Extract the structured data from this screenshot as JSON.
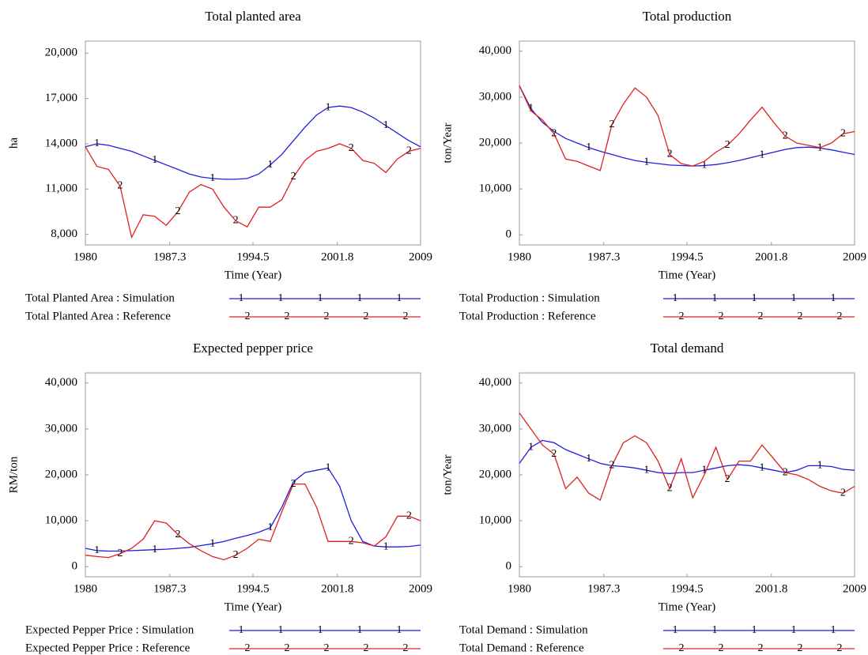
{
  "chart_data": [
    {
      "type": "line",
      "title": "Total planted area",
      "xlabel": "Time (Year)",
      "ylabel": "ha",
      "x": [
        1980,
        1981,
        1982,
        1983,
        1984,
        1985,
        1986,
        1987,
        1988,
        1989,
        1990,
        1991,
        1992,
        1993,
        1994,
        1995,
        1996,
        1997,
        1998,
        1999,
        2000,
        2001,
        2002,
        2003,
        2004,
        2005,
        2006,
        2007,
        2008,
        2009
      ],
      "xlim": [
        1980,
        2009
      ],
      "xticks": [
        1980,
        1987.3,
        1994.5,
        2001.8,
        2009
      ],
      "ylim": [
        7300,
        20800
      ],
      "yticks": [
        {
          "value": 8000,
          "label": "8,000"
        },
        {
          "value": 11000,
          "label": "11,000"
        },
        {
          "value": 14000,
          "label": "14,000"
        },
        {
          "value": 17000,
          "label": "17,000"
        },
        {
          "value": 20000,
          "label": "20,000"
        }
      ],
      "series": [
        {
          "name": "Total Planted Area : Simulation",
          "color": "#1f1fe0",
          "marker": "1",
          "values": [
            13800,
            14000,
            13900,
            13700,
            13500,
            13200,
            12900,
            12600,
            12300,
            12000,
            11800,
            11700,
            11650,
            11650,
            11700,
            12000,
            12600,
            13300,
            14200,
            15100,
            15900,
            16400,
            16500,
            16400,
            16100,
            15700,
            15200,
            14700,
            14200,
            13800
          ]
        },
        {
          "name": "Total Planted Area : Reference",
          "color": "#e02020",
          "marker": "2",
          "values": [
            13800,
            12500,
            12300,
            11200,
            7800,
            9300,
            9200,
            8600,
            9500,
            10800,
            11300,
            11000,
            9800,
            8900,
            8500,
            9800,
            9800,
            10300,
            11800,
            12900,
            13500,
            13700,
            14000,
            13700,
            12900,
            12700,
            12100,
            13000,
            13500,
            13700
          ]
        }
      ]
    },
    {
      "type": "line",
      "title": "Total production",
      "xlabel": "Time (Year)",
      "ylabel": "ton/Year",
      "x": [
        1980,
        1981,
        1982,
        1983,
        1984,
        1985,
        1986,
        1987,
        1988,
        1989,
        1990,
        1991,
        1992,
        1993,
        1994,
        1995,
        1996,
        1997,
        1998,
        1999,
        2000,
        2001,
        2002,
        2003,
        2004,
        2005,
        2006,
        2007,
        2008,
        2009
      ],
      "xlim": [
        1980,
        2009
      ],
      "xticks": [
        1980,
        1987.3,
        1994.5,
        2001.8,
        2009
      ],
      "ylim": [
        -2200,
        42200
      ],
      "yticks": [
        0,
        {
          "value": 10000,
          "label": "10,000"
        },
        {
          "value": 20000,
          "label": "20,000"
        },
        {
          "value": 30000,
          "label": "30,000"
        },
        {
          "value": 40000,
          "label": "40,000"
        }
      ],
      "series": [
        {
          "name": "Total Production : Simulation",
          "color": "#1f1fe0",
          "marker": "1",
          "values": [
            32500,
            27500,
            24500,
            22500,
            21000,
            20000,
            19000,
            18200,
            17500,
            16800,
            16200,
            15800,
            15500,
            15200,
            15100,
            15000,
            15100,
            15300,
            15700,
            16200,
            16800,
            17400,
            18000,
            18600,
            19000,
            19100,
            18900,
            18500,
            18000,
            17500
          ]
        },
        {
          "name": "Total Production : Reference",
          "color": "#e02020",
          "marker": "2",
          "values": [
            32500,
            27000,
            25000,
            22000,
            16500,
            16000,
            15000,
            14000,
            24000,
            28500,
            32000,
            30000,
            26000,
            17500,
            15500,
            15000,
            16000,
            18000,
            19500,
            22000,
            25000,
            27800,
            24500,
            21500,
            20000,
            19500,
            19000,
            20000,
            22000,
            22500
          ]
        }
      ]
    },
    {
      "type": "line",
      "title": "Expected pepper price",
      "xlabel": "Time (Year)",
      "ylabel": "RM/ton",
      "x": [
        1980,
        1981,
        1982,
        1983,
        1984,
        1985,
        1986,
        1987,
        1988,
        1989,
        1990,
        1991,
        1992,
        1993,
        1994,
        1995,
        1996,
        1997,
        1998,
        1999,
        2000,
        2001,
        2002,
        2003,
        2004,
        2005,
        2006,
        2007,
        2008,
        2009
      ],
      "xlim": [
        1980,
        2009
      ],
      "xticks": [
        1980,
        1987.3,
        1994.5,
        2001.8,
        2009
      ],
      "ylim": [
        -2200,
        42200
      ],
      "yticks": [
        0,
        {
          "value": 10000,
          "label": "10,000"
        },
        {
          "value": 20000,
          "label": "20,000"
        },
        {
          "value": 30000,
          "label": "30,000"
        },
        {
          "value": 40000,
          "label": "40,000"
        }
      ],
      "series": [
        {
          "name": "Expected Pepper Price : Simulation",
          "color": "#1f1fe0",
          "marker": "1",
          "values": [
            4000,
            3500,
            3400,
            3400,
            3500,
            3600,
            3700,
            3800,
            4000,
            4200,
            4600,
            5000,
            5500,
            6200,
            6800,
            7500,
            8500,
            13000,
            18500,
            20500,
            21000,
            21500,
            17500,
            10000,
            5500,
            4500,
            4300,
            4300,
            4400,
            4700
          ]
        },
        {
          "name": "Expected Pepper Price : Reference",
          "color": "#e02020",
          "marker": "2",
          "values": [
            2500,
            2200,
            2000,
            2800,
            4000,
            6000,
            10000,
            9500,
            7000,
            5000,
            3500,
            2200,
            1500,
            2500,
            4000,
            6000,
            5500,
            12000,
            18000,
            18000,
            13000,
            5500,
            5500,
            5500,
            5200,
            4500,
            6500,
            11000,
            11000,
            10000
          ]
        }
      ]
    },
    {
      "type": "line",
      "title": "Total demand",
      "xlabel": "Time (Year)",
      "ylabel": "ton/Year",
      "x": [
        1980,
        1981,
        1982,
        1983,
        1984,
        1985,
        1986,
        1987,
        1988,
        1989,
        1990,
        1991,
        1992,
        1993,
        1994,
        1995,
        1996,
        1997,
        1998,
        1999,
        2000,
        2001,
        2002,
        2003,
        2004,
        2005,
        2006,
        2007,
        2008,
        2009
      ],
      "xlim": [
        1980,
        2009
      ],
      "xticks": [
        1980,
        1987.3,
        1994.5,
        2001.8,
        2009
      ],
      "ylim": [
        -2200,
        42200
      ],
      "yticks": [
        0,
        {
          "value": 10000,
          "label": "10,000"
        },
        {
          "value": 20000,
          "label": "20,000"
        },
        {
          "value": 30000,
          "label": "30,000"
        },
        {
          "value": 40000,
          "label": "40,000"
        }
      ],
      "series": [
        {
          "name": "Total Demand : Simulation",
          "color": "#1f1fe0",
          "marker": "1",
          "values": [
            22500,
            26000,
            27500,
            27000,
            25500,
            24500,
            23500,
            22500,
            22000,
            21800,
            21500,
            21000,
            20500,
            20300,
            20500,
            20500,
            21000,
            21500,
            22000,
            22200,
            22000,
            21500,
            21000,
            20500,
            21000,
            22000,
            22000,
            21800,
            21200,
            21000
          ]
        },
        {
          "name": "Total Demand : Reference",
          "color": "#e02020",
          "marker": "2",
          "values": [
            33500,
            30000,
            26500,
            24500,
            17000,
            19500,
            16000,
            14500,
            22000,
            27000,
            28500,
            27000,
            23000,
            17000,
            23500,
            15000,
            20000,
            26000,
            19000,
            23000,
            23000,
            26500,
            23500,
            20500,
            20000,
            19000,
            17500,
            16500,
            16000,
            17500
          ]
        }
      ]
    }
  ]
}
